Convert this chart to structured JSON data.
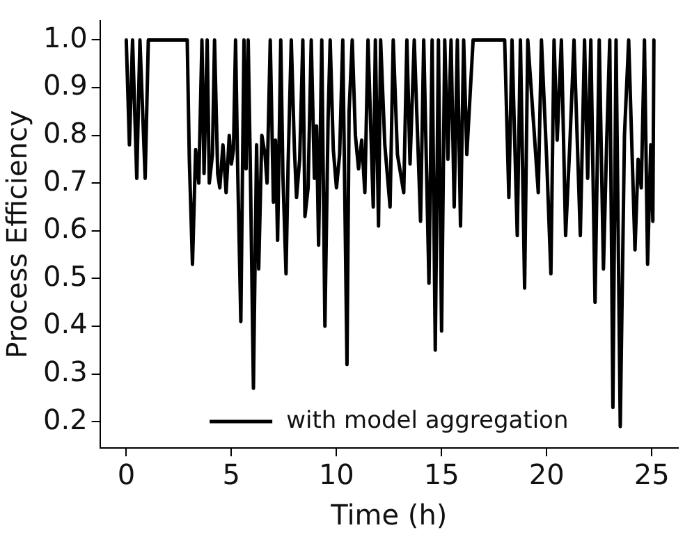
{
  "chart_data": {
    "type": "line",
    "xlabel": "Time (h)",
    "ylabel": "Process Efficiency",
    "xlim": [
      -1.25,
      26.25
    ],
    "ylim": [
      0.145,
      1.04
    ],
    "xticks": [
      0,
      5,
      10,
      15,
      20,
      25
    ],
    "yticks": [
      {
        "value": 0.2,
        "label": "0.2"
      },
      {
        "value": 0.3,
        "label": "0.3"
      },
      {
        "value": 0.4,
        "label": "0.4"
      },
      {
        "value": 0.5,
        "label": "0.5"
      },
      {
        "value": 0.6,
        "label": "0.6"
      },
      {
        "value": 0.7,
        "label": "0.7"
      },
      {
        "value": 0.8,
        "label": "0.8"
      },
      {
        "value": 0.9,
        "label": "0.9"
      },
      {
        "value": 1.0,
        "label": "1.0"
      }
    ],
    "grid": false,
    "legend": "bottom",
    "marker": "none",
    "line_style": "solid",
    "series": [
      {
        "name": "with model aggregation",
        "color": "#000000",
        "x": [
          0,
          0.15,
          0.3,
          0.5,
          0.65,
          0.9,
          1.05,
          2.9,
          3.0,
          3.15,
          3.3,
          3.45,
          3.6,
          3.7,
          3.85,
          3.95,
          4.1,
          4.2,
          4.35,
          4.45,
          4.6,
          4.75,
          4.9,
          5.0,
          5.1,
          5.2,
          5.3,
          5.45,
          5.6,
          5.7,
          5.8,
          5.9,
          6.05,
          6.2,
          6.3,
          6.45,
          6.6,
          6.7,
          6.85,
          7.0,
          7.1,
          7.2,
          7.35,
          7.45,
          7.6,
          7.7,
          7.85,
          8.0,
          8.1,
          8.25,
          8.4,
          8.5,
          8.65,
          8.8,
          8.95,
          9.05,
          9.15,
          9.3,
          9.45,
          9.6,
          9.7,
          9.85,
          10.0,
          10.15,
          10.3,
          10.5,
          10.6,
          10.75,
          10.9,
          11.05,
          11.2,
          11.35,
          11.5,
          11.75,
          11.85,
          12.0,
          12.1,
          12.3,
          12.55,
          12.7,
          12.9,
          13.2,
          13.35,
          13.5,
          13.7,
          14.0,
          14.15,
          14.4,
          14.55,
          14.7,
          14.85,
          15.0,
          15.15,
          15.3,
          15.45,
          15.6,
          15.75,
          15.9,
          16.05,
          16.2,
          16.5,
          18.0,
          18.2,
          18.35,
          18.6,
          18.75,
          18.95,
          19.1,
          19.4,
          19.6,
          19.75,
          20.0,
          20.2,
          20.35,
          20.5,
          20.7,
          20.9,
          21.1,
          21.3,
          21.6,
          21.8,
          21.95,
          22.1,
          22.3,
          22.5,
          22.7,
          22.85,
          23.0,
          23.15,
          23.3,
          23.5,
          23.7,
          23.9,
          24.2,
          24.35,
          24.5,
          24.65,
          24.8,
          24.95,
          25.05,
          25.1
        ],
        "values": [
          1.0,
          0.78,
          1.0,
          0.71,
          1.0,
          0.71,
          1.0,
          1.0,
          0.75,
          0.53,
          0.77,
          0.7,
          1.0,
          0.72,
          1.0,
          0.7,
          0.76,
          1.0,
          0.72,
          0.69,
          0.78,
          0.68,
          0.8,
          0.74,
          0.77,
          1.0,
          0.73,
          0.41,
          1.0,
          0.73,
          1.0,
          0.74,
          0.27,
          0.78,
          0.52,
          0.8,
          0.76,
          0.7,
          1.0,
          0.66,
          0.79,
          0.58,
          1.0,
          0.72,
          0.51,
          0.74,
          1.0,
          0.77,
          0.67,
          0.75,
          1.0,
          0.63,
          0.69,
          1.0,
          0.71,
          0.82,
          0.57,
          1.0,
          0.4,
          0.83,
          1.0,
          0.77,
          0.69,
          0.76,
          1.0,
          0.32,
          0.85,
          1.0,
          0.8,
          0.73,
          0.79,
          0.68,
          1.0,
          0.65,
          1.0,
          0.61,
          1.0,
          0.78,
          0.65,
          1.0,
          0.76,
          0.68,
          1.0,
          0.74,
          1.0,
          0.62,
          1.0,
          0.49,
          1.0,
          0.35,
          1.0,
          0.39,
          1.0,
          0.75,
          1.0,
          0.65,
          1.0,
          0.61,
          1.0,
          0.76,
          1.0,
          1.0,
          0.67,
          1.0,
          0.59,
          1.0,
          0.48,
          1.0,
          0.81,
          0.68,
          1.0,
          0.75,
          0.51,
          1.0,
          0.79,
          1.0,
          0.59,
          0.78,
          1.0,
          0.59,
          1.0,
          0.71,
          1.0,
          0.45,
          1.0,
          0.52,
          0.78,
          1.0,
          0.23,
          1.0,
          0.19,
          0.8,
          1.0,
          0.56,
          0.75,
          0.69,
          1.0,
          0.53,
          0.78,
          0.62,
          1.0
        ]
      }
    ]
  }
}
